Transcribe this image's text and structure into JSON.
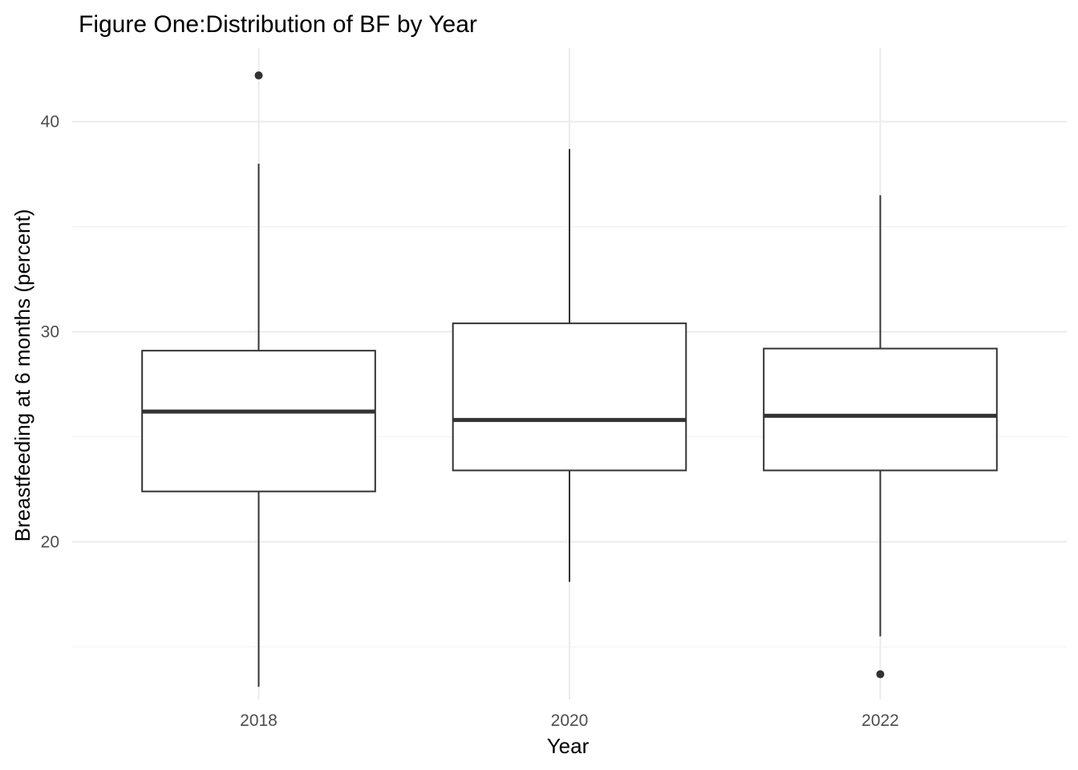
{
  "chart_data": {
    "type": "boxplot",
    "title": "Figure One:Distribution of BF by Year",
    "xlabel": "Year",
    "ylabel": "Breastfeeding at 6 months (percent)",
    "ylim": [
      12.5,
      43.5
    ],
    "yticks": [
      20,
      30,
      40
    ],
    "ytick_labels": [
      "20",
      "30",
      "40"
    ],
    "grid": true,
    "categories": [
      "2018",
      "2020",
      "2022"
    ],
    "boxes": [
      {
        "category": "2018",
        "whisker_low": 13.1,
        "q1": 22.4,
        "median": 26.2,
        "q3": 29.1,
        "whisker_high": 38.0,
        "outliers": [
          42.2
        ]
      },
      {
        "category": "2020",
        "whisker_low": 18.1,
        "q1": 23.4,
        "median": 25.8,
        "q3": 30.4,
        "whisker_high": 38.7,
        "outliers": []
      },
      {
        "category": "2022",
        "whisker_low": 15.5,
        "q1": 23.4,
        "median": 26.0,
        "q3": 29.2,
        "whisker_high": 36.5,
        "outliers": [
          13.7
        ]
      }
    ],
    "colors": {
      "box_line": "#333333",
      "whisker": "#333333",
      "outlier": "#333333",
      "grid_major": "#ebebeb",
      "grid_minor": "#f2f2f2",
      "background": "#ffffff"
    }
  }
}
